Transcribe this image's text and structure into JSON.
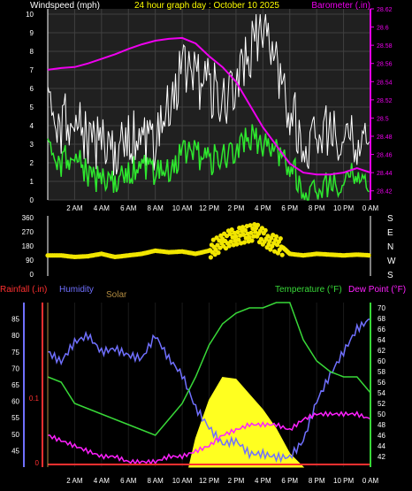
{
  "colors": {
    "background": "#000000",
    "plot_bg": "#202020",
    "grid": "#404040",
    "axis": "#ffffff",
    "wind": "#d8d8d8",
    "gust": "#ffffff",
    "avg_wind": "#2ee82e",
    "barometer": "#ee00ee",
    "direction": "#f2e600",
    "rain": "#ff3030",
    "humidity": "#7070ff",
    "solar": "#ffff20",
    "temperature": "#38d838",
    "dewpoint": "#ff20ff",
    "title": "#ffff00"
  },
  "chart_data": [
    {
      "type": "line",
      "title": "24 hour graph day : October 10 2025",
      "left_label": "Windspeed (mph)",
      "right_label": "Barometer (.in)",
      "x_ticks": [
        "2 AM",
        "4 AM",
        "6 AM",
        "8 AM",
        "10 AM",
        "12 PM",
        "2 PM",
        "4 PM",
        "6 PM",
        "8 PM",
        "10 PM",
        "0 AM"
      ],
      "ylim_left": [
        0,
        10
      ],
      "yticks_left": [
        "0",
        "1",
        "2",
        "3",
        "4",
        "5",
        "6",
        "7",
        "8",
        "9",
        "10"
      ],
      "ylim_right": [
        28.41,
        28.62
      ],
      "yticks_right": [
        "28.42",
        "28.44",
        "28.46",
        "28.48",
        "28.5",
        "28.52",
        "28.54",
        "28.56",
        "28.58",
        "28.6",
        "28.62"
      ],
      "series": [
        {
          "name": "Gust",
          "x": [
            0,
            1,
            2,
            3,
            4,
            5,
            6,
            7,
            8,
            9,
            10,
            11,
            12,
            13,
            14,
            15,
            16,
            17,
            18,
            19,
            20,
            21,
            22,
            23,
            24
          ],
          "values": [
            4.5,
            4,
            4.5,
            3.5,
            3,
            2.5,
            3.5,
            3.5,
            3,
            5,
            7,
            6.5,
            6,
            5.5,
            6,
            8,
            9.5,
            7,
            5,
            3,
            3.5,
            4,
            3.5,
            3,
            3.5
          ]
        },
        {
          "name": "Average",
          "x": [
            0,
            1,
            2,
            3,
            4,
            5,
            6,
            7,
            8,
            9,
            10,
            11,
            12,
            13,
            14,
            15,
            16,
            17,
            18,
            19,
            20,
            21,
            22,
            23,
            24
          ],
          "values": [
            2.5,
            2,
            2.5,
            1.5,
            1,
            1,
            1.5,
            2,
            1.5,
            1.5,
            2.5,
            2.5,
            2,
            2.5,
            2.5,
            3.5,
            3,
            2.5,
            2,
            0.5,
            0.5,
            1,
            1,
            1.5,
            0.5
          ]
        },
        {
          "name": "Barometer",
          "x": [
            0,
            1,
            2,
            3,
            4,
            5,
            6,
            7,
            8,
            9,
            10,
            11,
            12,
            13,
            14,
            15,
            16,
            17,
            18,
            19,
            20,
            21,
            22,
            23,
            24
          ],
          "values": [
            28.553,
            28.555,
            28.556,
            28.56,
            28.565,
            28.57,
            28.576,
            28.581,
            28.585,
            28.587,
            28.588,
            28.582,
            28.568,
            28.556,
            28.54,
            28.515,
            28.49,
            28.47,
            28.45,
            28.44,
            28.438,
            28.438,
            28.44,
            28.445,
            28.44
          ]
        }
      ]
    },
    {
      "type": "scatter",
      "title": "",
      "ylim": [
        0,
        360
      ],
      "yticks": [
        "0",
        "90",
        "180",
        "270",
        "360"
      ],
      "right_labels": [
        "S",
        "E",
        "N",
        "W",
        "S"
      ],
      "x": [
        0,
        1,
        2,
        3,
        4,
        5,
        6,
        7,
        8,
        9,
        10,
        11,
        12,
        12.5,
        13,
        13.5,
        14,
        14.5,
        15,
        15.5,
        16,
        16.5,
        17,
        17.5,
        18,
        19,
        20,
        21,
        22,
        23,
        24
      ],
      "values": [
        120,
        120,
        110,
        115,
        130,
        110,
        120,
        130,
        150,
        140,
        145,
        130,
        150,
        180,
        200,
        230,
        240,
        250,
        260,
        270,
        240,
        210,
        190,
        170,
        130,
        120,
        130,
        125,
        120,
        125,
        120
      ]
    },
    {
      "type": "line",
      "title": "",
      "left_labels": [
        "Rainfall (.in)",
        "Humidity",
        "Solar"
      ],
      "right_labels": [
        "Temperature (°F)",
        "Dew Point (°F)"
      ],
      "x_ticks": [
        "2 AM",
        "4 AM",
        "6 AM",
        "8 AM",
        "10 AM",
        "12 PM",
        "2 PM",
        "4 PM",
        "6 PM",
        "8 PM",
        "10 PM",
        "0 AM"
      ],
      "ylim_humidity": [
        40,
        90
      ],
      "yticks_humidity": [
        "45",
        "50",
        "55",
        "60",
        "65",
        "70",
        "75",
        "80",
        "85"
      ],
      "ylim_temp": [
        40,
        71
      ],
      "yticks_temp": [
        "42",
        "44",
        "46",
        "48",
        "50",
        "52",
        "54",
        "56",
        "58",
        "60",
        "62",
        "64",
        "66",
        "68",
        "70"
      ],
      "rain_ticks": [
        "0",
        "0.1"
      ],
      "series": [
        {
          "name": "Humidity",
          "x": [
            0,
            1,
            2,
            3,
            4,
            5,
            6,
            7,
            8,
            9,
            10,
            11,
            12,
            13,
            14,
            15,
            16,
            17,
            18,
            19,
            20,
            21,
            22,
            23,
            24
          ],
          "values": [
            75,
            72,
            78,
            80,
            75,
            76,
            74,
            73,
            80,
            73,
            68,
            58,
            52,
            47,
            48,
            44,
            44,
            43,
            43,
            48,
            60,
            68,
            75,
            82,
            85
          ]
        },
        {
          "name": "Temperature",
          "x": [
            0,
            1,
            2,
            3,
            4,
            5,
            6,
            7,
            8,
            9,
            10,
            11,
            12,
            13,
            14,
            15,
            16,
            17,
            18,
            19,
            20,
            21,
            22,
            23,
            24
          ],
          "values": [
            57,
            56,
            52,
            51,
            50,
            49,
            48,
            47,
            46,
            49,
            52,
            57,
            63,
            67,
            69,
            70,
            70,
            71,
            71,
            64,
            60,
            58,
            57,
            57,
            54
          ]
        },
        {
          "name": "Dew Point",
          "x": [
            0,
            1,
            2,
            3,
            4,
            5,
            6,
            7,
            8,
            9,
            10,
            11,
            12,
            13,
            14,
            15,
            16,
            17,
            18,
            19,
            20,
            21,
            22,
            23,
            24
          ],
          "values": [
            46,
            45,
            44,
            43,
            42,
            42,
            41,
            41,
            41,
            42,
            42,
            43,
            44,
            46,
            47,
            48,
            48,
            48,
            47,
            49,
            50,
            50,
            50,
            50,
            49
          ]
        },
        {
          "name": "Solar",
          "x": [
            10.5,
            11,
            12,
            13,
            14,
            15,
            16,
            17,
            18,
            19
          ],
          "values": [
            0,
            150,
            350,
            470,
            460,
            380,
            300,
            200,
            70,
            0
          ]
        }
      ]
    }
  ]
}
